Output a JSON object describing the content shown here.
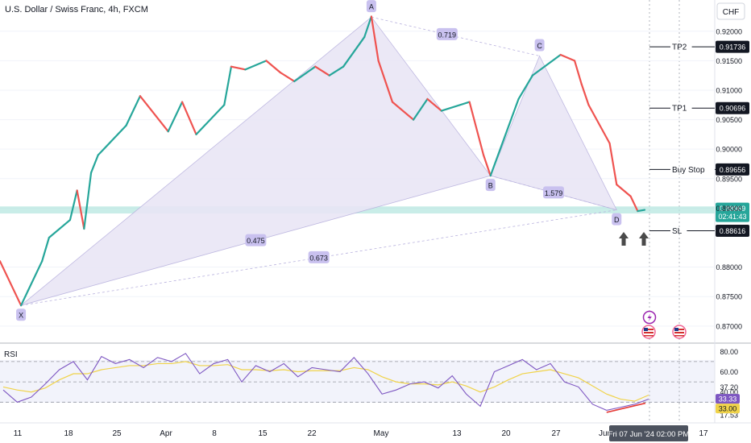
{
  "header": {
    "title": "U.S. Dollar / Swiss Franc, 4h, FXCM",
    "currency_button": "CHF"
  },
  "colors": {
    "bull": "#26a69a",
    "bear": "#ef5350",
    "pattern_fill": "#e9e6f6",
    "pattern_line": "#b9b2de",
    "point_label_bg": "#c9c1ef",
    "zone": "#b7e7e0",
    "rsi": "#7e57c2",
    "rsi_ma": "#f0d34a"
  },
  "chart_data": {
    "type": "line",
    "symbol": "USDCHF",
    "timeframe": "4h",
    "y_axis": {
      "ylim": [
        0.8682,
        0.9242
      ],
      "ticks": [
        "0.92000",
        "0.91500",
        "0.91000",
        "0.90500",
        "0.90000",
        "0.89500",
        "0.89000",
        "0.88000",
        "0.87500",
        "0.87000"
      ]
    },
    "x_axis": {
      "ticks": [
        "11",
        "18",
        "25",
        "Apr",
        "8",
        "15",
        "22",
        "May",
        "13",
        "20",
        "27",
        "Jun",
        "17"
      ],
      "crosshair_label": "Fri 07 Jun '24   02:00 PM"
    },
    "price_series": {
      "name": "USDCHF close (approx.)",
      "x": [
        "Mar 08",
        "Mar 11",
        "Mar 12",
        "Mar 14",
        "Mar 15",
        "Mar 18",
        "Mar 19",
        "Mar 20",
        "Mar 21",
        "Mar 22",
        "Mar 26",
        "Mar 28",
        "Apr 01",
        "Apr 03",
        "Apr 05",
        "Apr 09",
        "Apr 10",
        "Apr 12",
        "Apr 15",
        "Apr 17",
        "Apr 19",
        "Apr 22",
        "Apr 24",
        "Apr 26",
        "Apr 29",
        "Apr 30",
        "May 01",
        "May 03",
        "May 06",
        "May 08",
        "May 10",
        "May 14",
        "May 16",
        "May 17",
        "May 21",
        "May 23",
        "May 27",
        "May 29",
        "May 30",
        "May 31",
        "Jun 03",
        "Jun 04",
        "Jun 06",
        "Jun 07",
        "Jun 08"
      ],
      "y": [
        0.881,
        0.8735,
        0.876,
        0.881,
        0.885,
        0.888,
        0.893,
        0.8865,
        0.896,
        0.899,
        0.904,
        0.909,
        0.903,
        0.908,
        0.9025,
        0.9075,
        0.914,
        0.9135,
        0.915,
        0.913,
        0.9115,
        0.914,
        0.9125,
        0.914,
        0.919,
        0.9225,
        0.915,
        0.908,
        0.905,
        0.9085,
        0.9065,
        0.908,
        0.899,
        0.8955,
        0.9085,
        0.9125,
        0.916,
        0.915,
        0.911,
        0.9075,
        0.901,
        0.894,
        0.892,
        0.8895,
        0.8897
      ]
    },
    "harmonic_pattern": {
      "points": [
        {
          "name": "X",
          "x": "Mar 11",
          "y": 0.8735
        },
        {
          "name": "A",
          "x": "Apr 30",
          "y": 0.9224
        },
        {
          "name": "B",
          "x": "May 17",
          "y": 0.8955
        },
        {
          "name": "C",
          "x": "May 24",
          "y": 0.9158
        },
        {
          "name": "D",
          "x": "Jun 04",
          "y": 0.8897
        }
      ],
      "ratios": [
        "0.719",
        "1.579",
        "0.475",
        "0.673"
      ]
    },
    "levels": [
      {
        "name": "TP2",
        "value": "0.91736"
      },
      {
        "name": "TP1",
        "value": "0.90696"
      },
      {
        "name": "Buy Stop",
        "value": "0.89656"
      },
      {
        "name": "SL",
        "value": "0.88616"
      }
    ],
    "current_price": {
      "value": "0.88969",
      "countdown": "02:41:43"
    },
    "rsi": {
      "label": "RSI",
      "ylim": [
        12,
        85
      ],
      "ticks": [
        "80.00",
        "60.00",
        "40.00",
        "17.53"
      ],
      "ma_value": "37.20",
      "value": "33.33",
      "level": "33.00",
      "levels": [
        70,
        50,
        30
      ],
      "values": [
        42,
        30,
        35,
        48,
        62,
        70,
        52,
        75,
        68,
        72,
        64,
        74,
        70,
        78,
        58,
        68,
        72,
        50,
        66,
        60,
        68,
        55,
        64,
        62,
        60,
        74,
        58,
        38,
        42,
        48,
        50,
        44,
        56,
        38,
        26,
        60,
        66,
        72,
        62,
        68,
        50,
        45,
        28,
        22,
        25,
        28,
        33
      ],
      "ma_values": [
        45,
        42,
        40,
        44,
        52,
        58,
        58,
        62,
        64,
        66,
        66,
        68,
        68,
        70,
        66,
        66,
        67,
        62,
        62,
        61,
        62,
        60,
        61,
        61,
        61,
        64,
        62,
        55,
        50,
        48,
        48,
        47,
        50,
        46,
        40,
        45,
        52,
        58,
        60,
        62,
        58,
        54,
        46,
        38,
        33,
        31,
        37
      ]
    }
  }
}
